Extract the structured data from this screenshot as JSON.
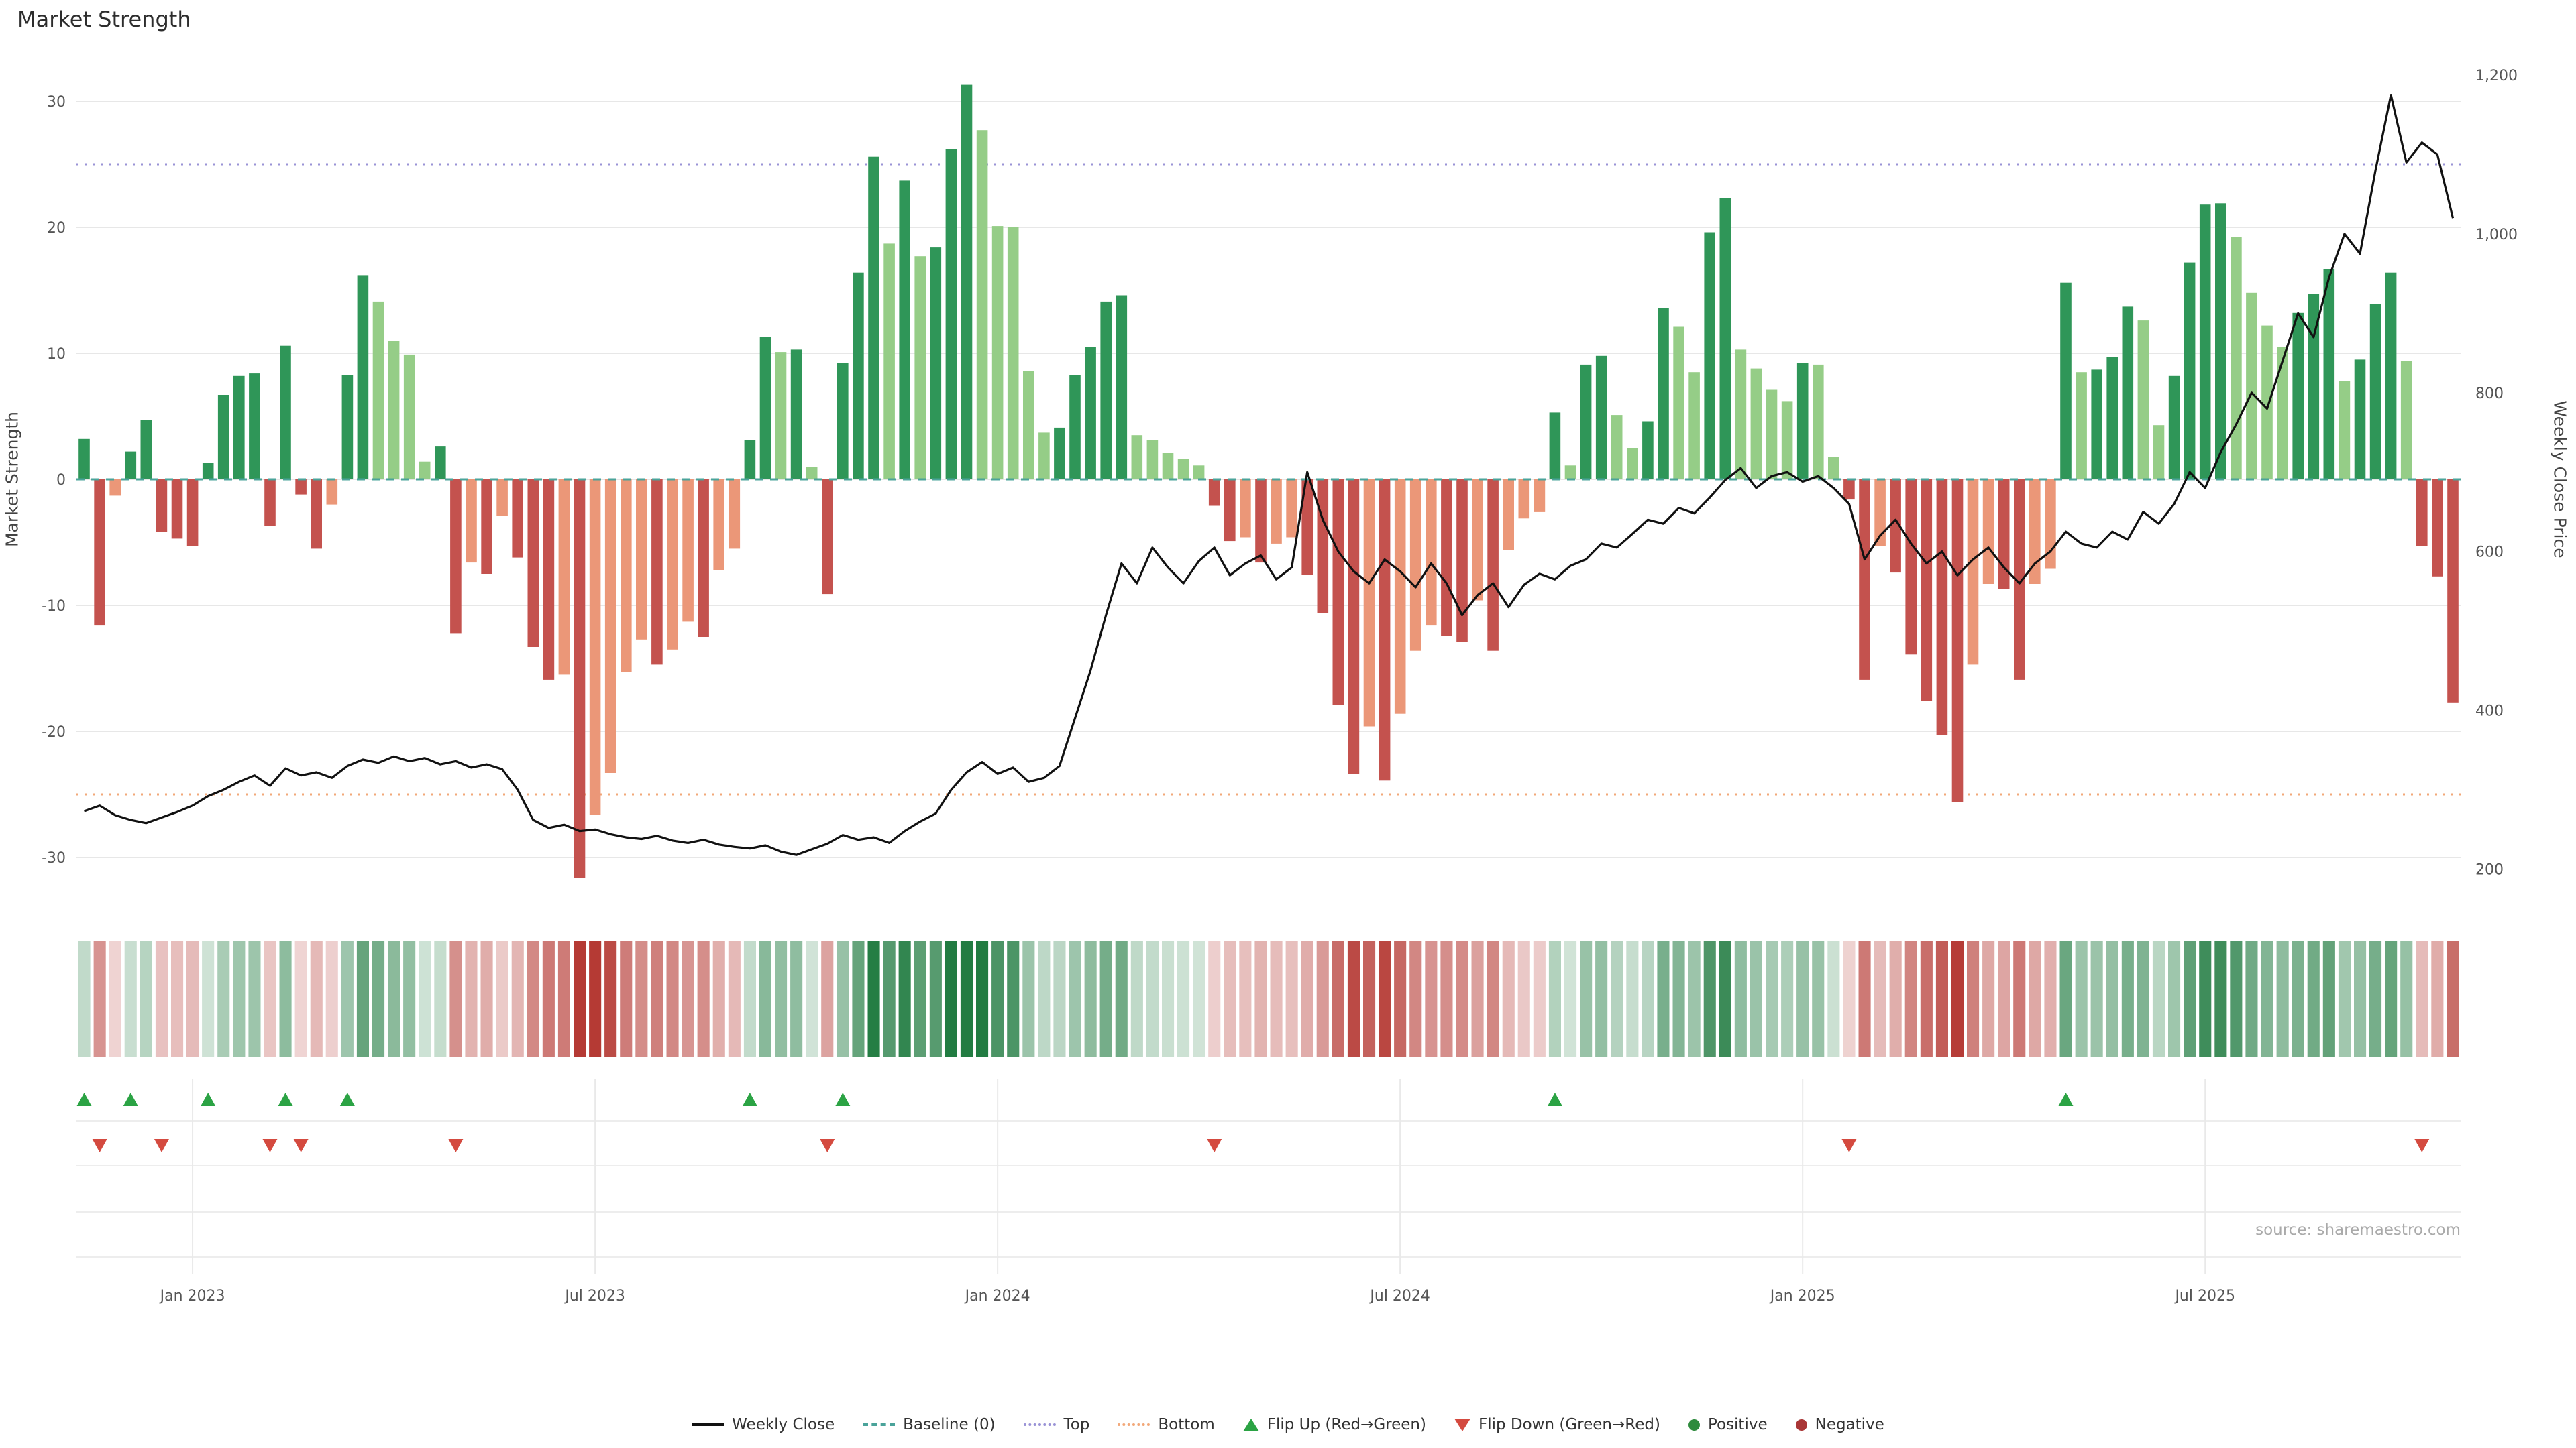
{
  "title": "Market Strength",
  "source": "source: sharemaestro.com",
  "axes": {
    "left": {
      "title": "Market Strength",
      "ticks": [
        30,
        20,
        10,
        0,
        -10,
        -20,
        -30
      ]
    },
    "right": {
      "title": "Weekly Close Price",
      "ticks": [
        "1,200",
        "1,000",
        "800",
        "600",
        "400",
        "200"
      ],
      "tick_values": [
        1200,
        1000,
        800,
        600,
        400,
        200
      ]
    },
    "x": {
      "tick_labels": [
        "Jan 2023",
        "Jul 2023",
        "Jan 2024",
        "Jul 2024",
        "Jan 2025",
        "Jul 2025"
      ]
    }
  },
  "colors": {
    "bar_positive_dark": "#2f9658",
    "bar_positive_light": "#95cd87",
    "bar_negative_dark": "#c4524e",
    "bar_negative_light": "#eb9778",
    "line": "#111111",
    "baseline": "#4aa39a",
    "top": "#9a93d6",
    "bottom": "#f2a879",
    "flip_up": "#2ba344",
    "flip_down": "#d44a3f",
    "positive_dot": "#2e8b3d",
    "negative_dot": "#a93636",
    "grid": "#e7e7e7"
  },
  "legend": {
    "items": [
      {
        "label": "Weekly Close",
        "swatch": "line",
        "color": "#111111"
      },
      {
        "label": "Baseline (0)",
        "swatch": "dashed",
        "color": "#4aa39a"
      },
      {
        "label": "Top",
        "swatch": "dotted",
        "color": "#9a93d6"
      },
      {
        "label": "Bottom",
        "swatch": "dotted",
        "color": "#f2a879"
      },
      {
        "label": "Flip Up (Red→Green)",
        "swatch": "triangle-up",
        "color": "#2ba344"
      },
      {
        "label": "Flip Down (Green→Red)",
        "swatch": "triangle-down",
        "color": "#d44a3f"
      },
      {
        "label": "Positive",
        "swatch": "dot",
        "color": "#2e8b3d"
      },
      {
        "label": "Negative",
        "swatch": "dot",
        "color": "#a93636"
      }
    ]
  },
  "chart_data": {
    "type": "combo",
    "title": "Market Strength",
    "x_unit": "week",
    "n_weeks": 154,
    "ylabel_left": "Market Strength",
    "ylabel_right": "Weekly Close Price",
    "ylim_left": [
      -33,
      32.5
    ],
    "ylim_right": [
      170,
      1220
    ],
    "grid": true,
    "legend_position": "bottom",
    "reference_lines": {
      "baseline": 0,
      "top": 25,
      "bottom": -25
    },
    "x_ticks": [
      {
        "label": "Jan 2023",
        "week": 7
      },
      {
        "label": "Jul 2023",
        "week": 33
      },
      {
        "label": "Jan 2024",
        "week": 59
      },
      {
        "label": "Jul 2024",
        "week": 85
      },
      {
        "label": "Jan 2025",
        "week": 111
      },
      {
        "label": "Jul 2025",
        "week": 137
      }
    ],
    "flip_up_weeks": [
      0,
      3,
      8,
      13,
      17,
      43,
      49,
      95,
      128
    ],
    "flip_down_weeks": [
      1,
      5,
      12,
      14,
      24,
      48,
      73,
      114,
      151
    ],
    "series": [
      {
        "name": "Market Strength",
        "type": "bar",
        "axis": "left",
        "values": [
          3.2,
          -11.6,
          -1.3,
          2.2,
          4.7,
          -4.2,
          -4.7,
          -5.3,
          1.3,
          6.7,
          8.2,
          8.4,
          -3.7,
          10.6,
          -1.2,
          -5.5,
          -2.0,
          8.3,
          16.2,
          14.1,
          11.0,
          9.9,
          1.4,
          2.6,
          -12.2,
          -6.6,
          -7.5,
          -2.9,
          -6.2,
          -13.3,
          -15.9,
          -15.5,
          -31.6,
          -26.6,
          -23.3,
          -15.3,
          -12.7,
          -14.7,
          -13.5,
          -11.3,
          -12.5,
          -7.2,
          -5.5,
          3.1,
          11.3,
          10.1,
          10.3,
          1.0,
          -9.1,
          9.2,
          16.4,
          25.6,
          18.7,
          23.7,
          17.7,
          18.4,
          26.2,
          31.3,
          27.7,
          20.1,
          20.0,
          8.6,
          3.7,
          4.1,
          8.3,
          10.5,
          14.1,
          14.6,
          3.5,
          3.1,
          2.1,
          1.6,
          1.1,
          -2.1,
          -4.9,
          -4.6,
          -6.6,
          -5.1,
          -4.6,
          -7.6,
          -10.6,
          -17.9,
          -23.4,
          -19.6,
          -23.9,
          -18.6,
          -13.6,
          -11.6,
          -12.4,
          -12.9,
          -9.6,
          -13.6,
          -5.6,
          -3.1,
          -2.6,
          5.3,
          1.1,
          9.1,
          9.8,
          5.1,
          2.5,
          4.6,
          13.6,
          12.1,
          8.5,
          19.6,
          22.3,
          10.3,
          8.8,
          7.1,
          6.2,
          9.2,
          9.1,
          1.8,
          -1.6,
          -15.9,
          -5.3,
          -7.4,
          -13.9,
          -17.6,
          -20.3,
          -25.6,
          -14.7,
          -8.3,
          -8.7,
          -15.9,
          -8.3,
          -7.1,
          15.6,
          8.5,
          8.7,
          9.7,
          13.7,
          12.6,
          4.3,
          8.2,
          17.2,
          21.8,
          21.9,
          19.2,
          14.8,
          12.2,
          10.5,
          13.2,
          14.7,
          16.7,
          7.8,
          9.5,
          13.9,
          16.4,
          9.4,
          -5.3,
          -7.7,
          -17.7
        ]
      },
      {
        "name": "Weekly Close",
        "type": "line",
        "axis": "right",
        "values": [
          273,
          280,
          268,
          262,
          258,
          265,
          272,
          280,
          292,
          300,
          310,
          318,
          305,
          327,
          318,
          322,
          315,
          330,
          338,
          334,
          342,
          336,
          340,
          332,
          336,
          328,
          332,
          326,
          300,
          262,
          252,
          256,
          248,
          250,
          244,
          240,
          238,
          242,
          236,
          233,
          237,
          231,
          228,
          226,
          230,
          222,
          218,
          225,
          232,
          243,
          237,
          240,
          233,
          248,
          260,
          270,
          300,
          322,
          335,
          320,
          328,
          310,
          315,
          330,
          390,
          450,
          520,
          585,
          560,
          605,
          580,
          560,
          588,
          605,
          570,
          585,
          595,
          565,
          580,
          700,
          640,
          600,
          575,
          560,
          590,
          575,
          555,
          585,
          560,
          520,
          545,
          560,
          530,
          558,
          572,
          565,
          582,
          590,
          610,
          605,
          622,
          640,
          635,
          655,
          648,
          668,
          690,
          705,
          680,
          695,
          700,
          688,
          695,
          680,
          660,
          590,
          620,
          640,
          610,
          585,
          600,
          570,
          590,
          605,
          580,
          560,
          585,
          600,
          625,
          610,
          605,
          625,
          615,
          650,
          635,
          660,
          700,
          680,
          725,
          760,
          800,
          780,
          840,
          900,
          870,
          945,
          1000,
          975,
          1080,
          1175,
          1090,
          1115,
          1100,
          1020
        ]
      }
    ]
  }
}
